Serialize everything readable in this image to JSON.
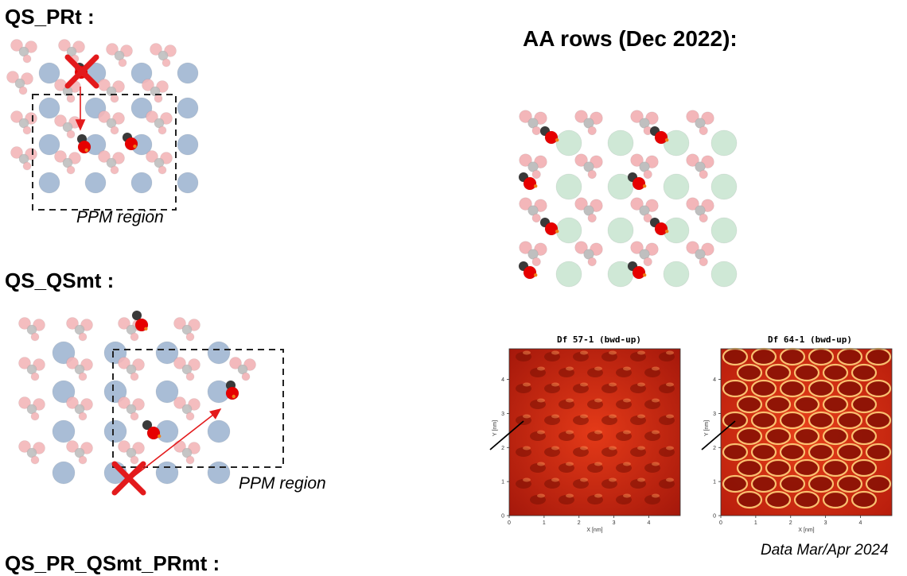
{
  "headings": {
    "prt": "QS_PRt :",
    "qsmt": "QS_QSmt :",
    "combo": "QS_PR_QSmt_PRmt :",
    "aa_rows": "AA rows (Dec 2022):"
  },
  "labels": {
    "ppm_region_1": "PPM region",
    "ppm_region_2": "PPM region",
    "data_date": "Data Mar/Apr 2024"
  },
  "afm_panels": [
    {
      "title": "Df 57-1 (bwd-up)",
      "x_axis_label": "X [nm]",
      "y_axis_label": "Y [nm]",
      "x_ticks": [
        "0",
        "1",
        "2",
        "3",
        "4"
      ],
      "y_ticks": [
        "0",
        "1",
        "2",
        "3",
        "4"
      ]
    },
    {
      "title": "Df 64-1 (bwd-up)",
      "x_axis_label": "X [nm]",
      "y_axis_label": "Y [nm]",
      "x_ticks": [
        "0",
        "1",
        "2",
        "3",
        "4"
      ],
      "y_ticks": [
        "0",
        "1",
        "2",
        "3",
        "4"
      ]
    }
  ],
  "colors": {
    "cu_atom": "#a9bdd6",
    "o_atom": "#f3b6b9",
    "c_atom": "#bfbfbf",
    "co_c": "#3a3a3a",
    "co_o": "#e60000",
    "green_atom": "#cfe8d6",
    "marker": "#e31a1c"
  },
  "icons": [
    "x-mark-icon",
    "arrow-icon"
  ]
}
